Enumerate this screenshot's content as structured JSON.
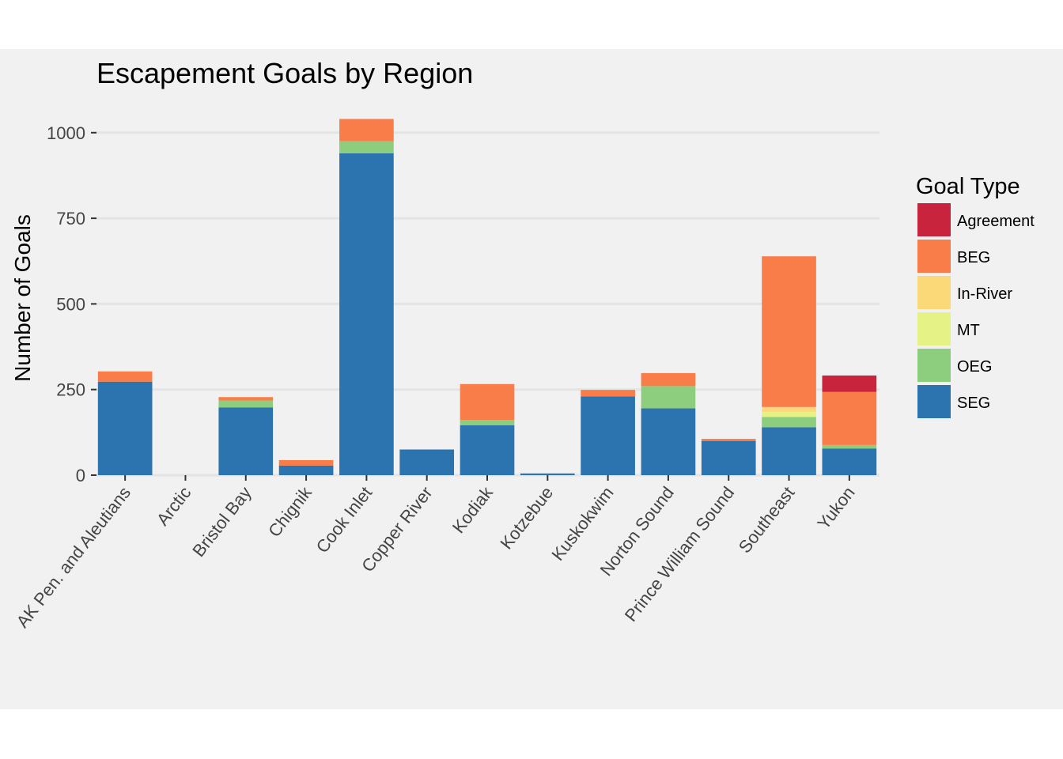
{
  "chart_data": {
    "type": "bar",
    "stacked": true,
    "title": "Escapement Goals by Region",
    "xlabel": "",
    "ylabel": "Number of Goals",
    "ylim": [
      0,
      1090
    ],
    "yticks": [
      0,
      250,
      500,
      750,
      1000
    ],
    "grid": true,
    "legend_position": "right",
    "legend_title": "Goal Type",
    "categories": [
      "AK Pen. and Aleutians",
      "Arctic",
      "Bristol Bay",
      "Chignik",
      "Cook Inlet",
      "Copper River",
      "Kodiak",
      "Kotzebue",
      "Kuskokwim",
      "Norton Sound",
      "Prince William Sound",
      "Southeast",
      "Yukon"
    ],
    "series": [
      {
        "name": "SEG",
        "color": "#2b74b0",
        "values": [
          273,
          0,
          198,
          28,
          940,
          75,
          146,
          5,
          230,
          195,
          100,
          140,
          78
        ]
      },
      {
        "name": "OEG",
        "color": "#8ccd7e",
        "values": [
          0,
          0,
          20,
          0,
          35,
          0,
          15,
          0,
          0,
          65,
          0,
          30,
          10
        ]
      },
      {
        "name": "MT",
        "color": "#e5f285",
        "values": [
          0,
          0,
          0,
          0,
          0,
          0,
          0,
          0,
          0,
          0,
          0,
          15,
          0
        ]
      },
      {
        "name": "In-River",
        "color": "#fbd878",
        "values": [
          0,
          0,
          0,
          0,
          0,
          0,
          0,
          0,
          0,
          0,
          0,
          14,
          0
        ]
      },
      {
        "name": "BEG",
        "color": "#f97d49",
        "values": [
          30,
          0,
          10,
          16,
          65,
          0,
          105,
          0,
          19,
          38,
          6,
          440,
          155
        ]
      },
      {
        "name": "Agreement",
        "color": "#c9243d",
        "values": [
          0,
          0,
          0,
          0,
          0,
          0,
          0,
          0,
          0,
          0,
          0,
          0,
          48
        ]
      }
    ],
    "legend_order": [
      "Agreement",
      "BEG",
      "In-River",
      "MT",
      "OEG",
      "SEG"
    ]
  }
}
